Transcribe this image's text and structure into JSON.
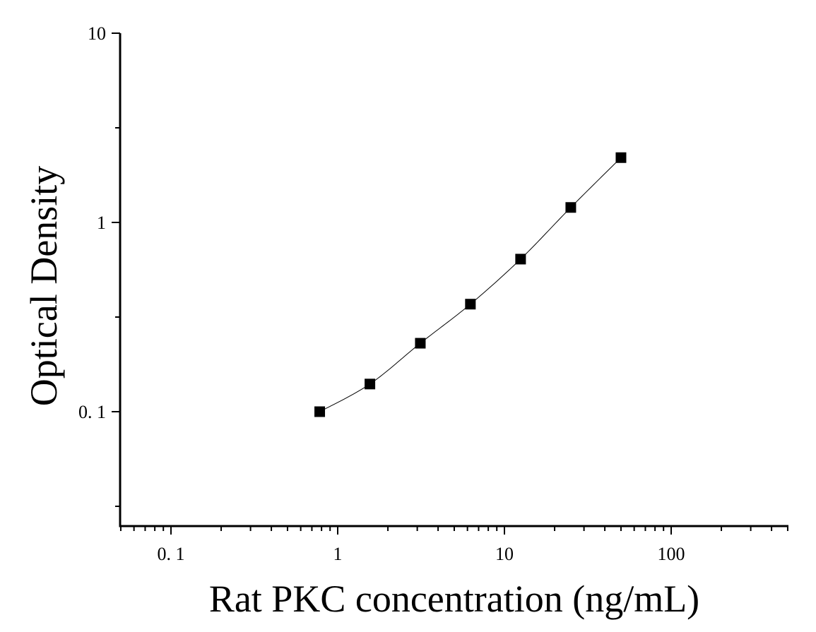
{
  "chart_data": {
    "type": "scatter",
    "title": "",
    "xlabel": "Rat PKC concentration (ng/mL)",
    "ylabel": "Optical Density",
    "x_scale": "log",
    "y_scale": "log",
    "xlim": [
      0.05,
      500
    ],
    "ylim": [
      0.025,
      10
    ],
    "x_ticks": [
      {
        "value": 0.1,
        "label": "0. 1"
      },
      {
        "value": 1,
        "label": "1"
      },
      {
        "value": 10,
        "label": "10"
      },
      {
        "value": 100,
        "label": "100"
      }
    ],
    "y_ticks": [
      {
        "value": 10,
        "label": "10"
      },
      {
        "value": 1,
        "label": "1"
      },
      {
        "value": 0.1,
        "label": "0. 1"
      }
    ],
    "grid": false,
    "legend": "none",
    "series": [
      {
        "x": [
          0.78,
          1.56,
          3.13,
          6.25,
          12.5,
          25,
          50
        ],
        "y": [
          0.1,
          0.14,
          0.23,
          0.37,
          0.64,
          1.2,
          2.2
        ],
        "marker": "square",
        "color": "#000000",
        "fit_line": true
      }
    ]
  }
}
